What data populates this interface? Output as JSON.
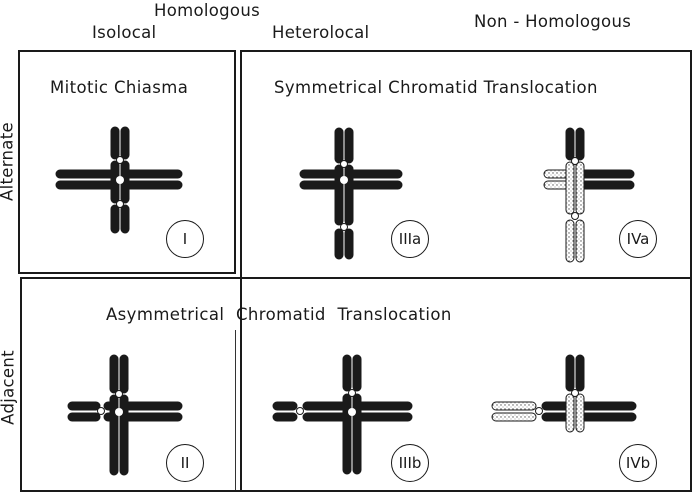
{
  "headers": {
    "homologous": "Homologous",
    "isolocal": "Isolocal",
    "heterolocal": "Heterolocal",
    "non_homologous": "Non - Homologous"
  },
  "rows": {
    "alternate": "Alternate",
    "adjacent": "Adjacent"
  },
  "panels": {
    "mitotic_chiasma": "Mitotic Chiasma",
    "symmetrical": "Symmetrical Chromatid Translocation",
    "asymmetrical": "Asymmetrical Chromatid Translocation"
  },
  "badges": {
    "i": "I",
    "ii": "II",
    "iiia": "IIIa",
    "iiib": "IIIb",
    "iva": "IVa",
    "ivb": "IVb"
  },
  "colors": {
    "chromatin": "#1a1a1a",
    "stippled": "#d8d8d8"
  }
}
